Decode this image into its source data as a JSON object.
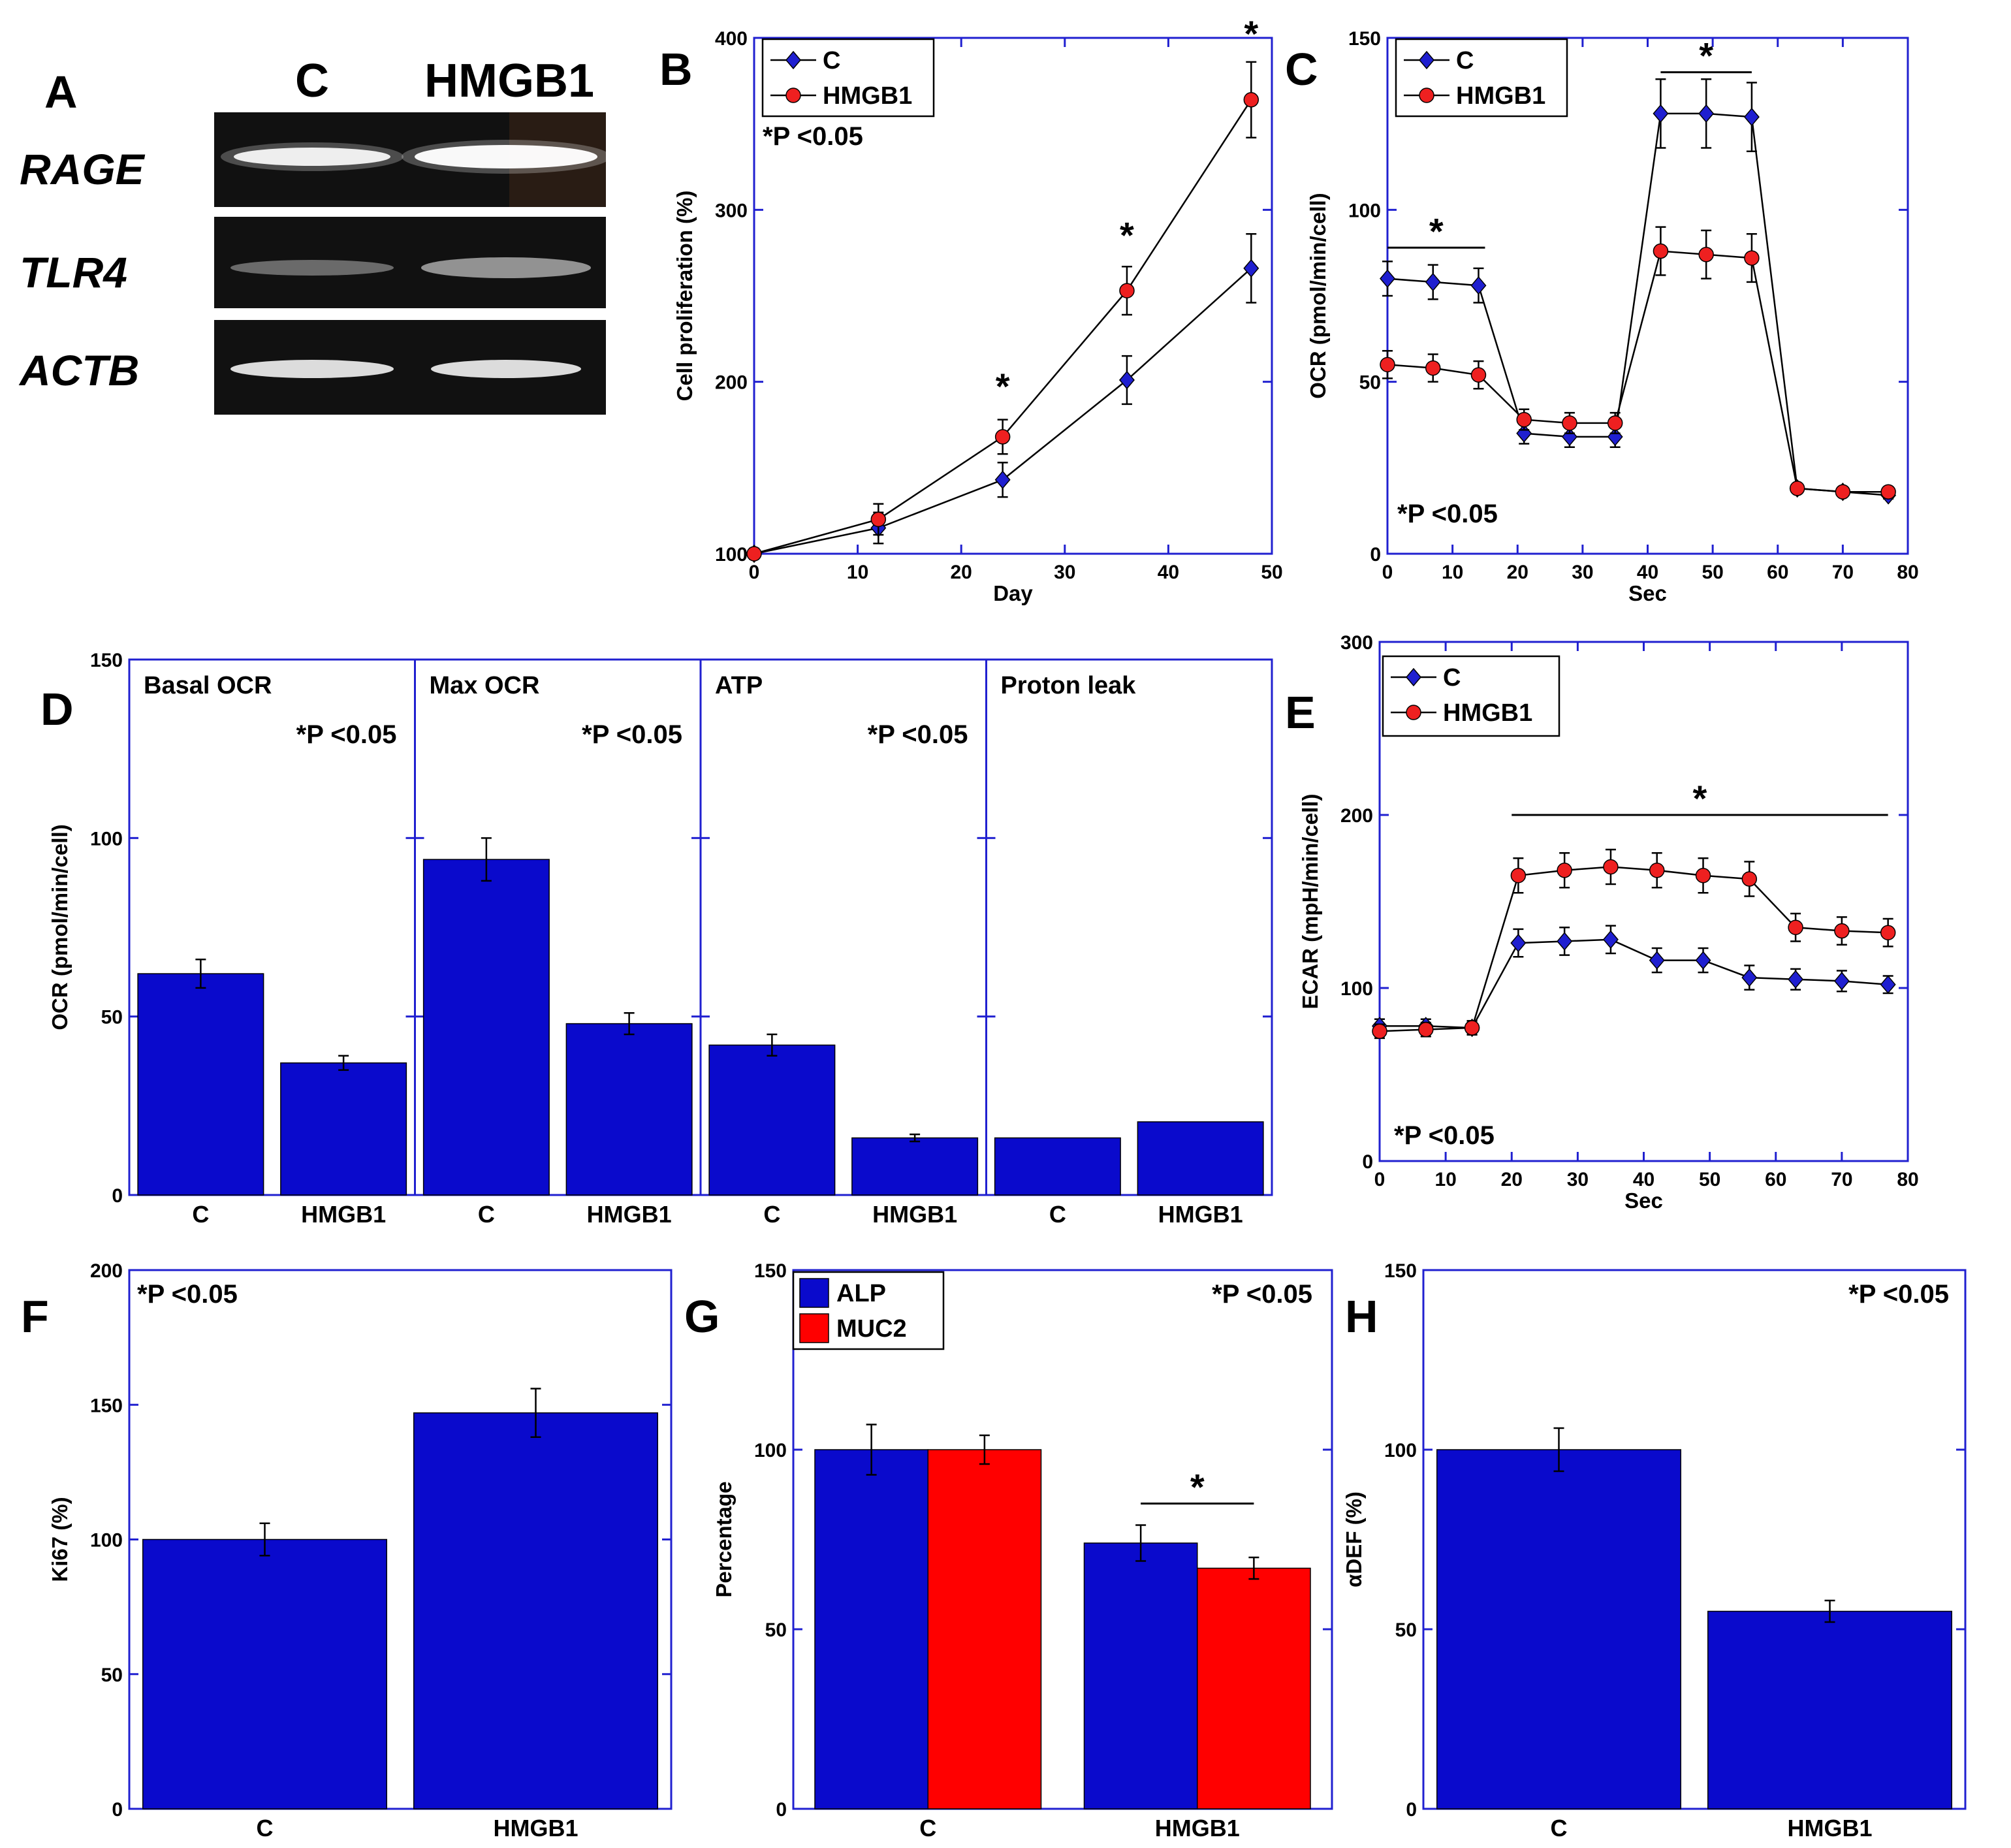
{
  "colors": {
    "c_series": "#1f1fd0",
    "hmgb1_series": "#ee2020",
    "bar_blue": "#0a0acc",
    "bar_red": "#ff0000",
    "axis": "#2020d0"
  },
  "panel_a": {
    "label": "A",
    "lanes": [
      "C",
      "HMGB1"
    ],
    "genes": [
      "RAGE",
      "TLR4",
      "ACTB"
    ]
  },
  "chart_data": [
    {
      "id": "B",
      "label": "B",
      "type": "line",
      "xlabel": "Day",
      "ylabel": "Cell proliferation (%)",
      "xlim": [
        0,
        50
      ],
      "ylim": [
        100,
        400
      ],
      "xticks": [
        0,
        10,
        20,
        30,
        40,
        50
      ],
      "yticks": [
        100,
        200,
        300,
        400
      ],
      "x": [
        0,
        12,
        24,
        36,
        48
      ],
      "series": [
        {
          "name": "C",
          "values": [
            100,
            115,
            143,
            201,
            266
          ],
          "errors": [
            3,
            9,
            10,
            14,
            20
          ]
        },
        {
          "name": "HMGB1",
          "values": [
            100,
            120,
            168,
            253,
            364
          ],
          "errors": [
            3,
            9,
            10,
            14,
            22
          ]
        }
      ],
      "legend": "top-left",
      "note": "*P <0.05",
      "stars": [
        {
          "x": 24,
          "y": 190
        },
        {
          "x": 36,
          "y": 278
        },
        {
          "x": 48,
          "y": 395
        }
      ]
    },
    {
      "id": "C",
      "label": "C",
      "type": "line",
      "xlabel": "Sec",
      "ylabel": "OCR (pmol/min/cell)",
      "xlim": [
        0,
        80
      ],
      "ylim": [
        0,
        150
      ],
      "xticks": [
        0,
        10,
        20,
        30,
        40,
        50,
        60,
        70,
        80
      ],
      "yticks": [
        0,
        50,
        100,
        150
      ],
      "x": [
        0,
        7,
        14,
        21,
        28,
        35,
        42,
        49,
        56,
        63,
        70,
        77
      ],
      "series": [
        {
          "name": "C",
          "values": [
            80,
            79,
            78,
            35,
            34,
            34,
            128,
            128,
            127,
            19,
            18,
            17
          ],
          "errors": [
            5,
            5,
            5,
            3,
            3,
            3,
            10,
            10,
            10,
            1,
            1,
            1
          ]
        },
        {
          "name": "HMGB1",
          "values": [
            55,
            54,
            52,
            39,
            38,
            38,
            88,
            87,
            86,
            19,
            18,
            18
          ],
          "errors": [
            4,
            4,
            4,
            3,
            3,
            3,
            7,
            7,
            7,
            1,
            1,
            1
          ]
        }
      ],
      "legend": "top-left",
      "note": "*P <0.05",
      "sig_bars": [
        {
          "x1": 0,
          "x2": 15,
          "y": 89
        },
        {
          "x1": 42,
          "x2": 56,
          "y": 140
        }
      ]
    },
    {
      "id": "D",
      "label": "D",
      "type": "bar",
      "ylabel": "OCR (pmol/min/cell)",
      "ylim": [
        0,
        150
      ],
      "yticks": [
        0,
        50,
        100,
        150
      ],
      "groups": [
        {
          "title": "Basal OCR",
          "note": "*P <0.05",
          "categories": [
            "C",
            "HMGB1"
          ],
          "values": [
            62,
            37
          ],
          "errors": [
            4,
            2
          ]
        },
        {
          "title": "Max OCR",
          "note": "*P <0.05",
          "categories": [
            "C",
            "HMGB1"
          ],
          "values": [
            94,
            48
          ],
          "errors": [
            6,
            3
          ]
        },
        {
          "title": "ATP",
          "note": "*P <0.05",
          "categories": [
            "C",
            "HMGB1"
          ],
          "values": [
            42,
            16
          ],
          "errors": [
            3,
            1
          ]
        },
        {
          "title": "Proton leak",
          "note": "",
          "categories": [
            "C",
            "HMGB1"
          ],
          "values": [
            16,
            20.5
          ],
          "errors": [
            0,
            0
          ]
        }
      ]
    },
    {
      "id": "E",
      "label": "E",
      "type": "line",
      "xlabel": "Sec",
      "ylabel": "ECAR (mpH/min/cell)",
      "xlim": [
        0,
        80
      ],
      "ylim": [
        0,
        300
      ],
      "xticks": [
        0,
        10,
        20,
        30,
        40,
        50,
        60,
        70,
        80
      ],
      "yticks": [
        0,
        100,
        200,
        300
      ],
      "x": [
        0,
        7,
        14,
        21,
        28,
        35,
        42,
        49,
        56,
        63,
        70,
        77
      ],
      "series": [
        {
          "name": "C",
          "values": [
            78,
            78,
            77,
            126,
            127,
            128,
            116,
            116,
            106,
            105,
            104,
            102
          ],
          "errors": [
            4,
            4,
            4,
            8,
            8,
            8,
            7,
            7,
            7,
            6,
            6,
            5
          ]
        },
        {
          "name": "HMGB1",
          "values": [
            75,
            76,
            77,
            165,
            168,
            170,
            168,
            165,
            163,
            135,
            133,
            132
          ],
          "errors": [
            4,
            4,
            4,
            10,
            10,
            10,
            10,
            10,
            10,
            8,
            8,
            8
          ]
        }
      ],
      "legend": "top-left",
      "note": "*P <0.05",
      "sig_bars": [
        {
          "x1": 20,
          "x2": 77,
          "y": 200
        }
      ]
    },
    {
      "id": "F",
      "label": "F",
      "type": "bar",
      "ylabel": "Ki67 (%)",
      "ylim": [
        0,
        200
      ],
      "yticks": [
        0,
        50,
        100,
        150,
        200
      ],
      "categories": [
        "C",
        "HMGB1"
      ],
      "values": [
        100,
        147
      ],
      "errors": [
        6,
        9
      ],
      "note": "*P <0.05"
    },
    {
      "id": "G",
      "label": "G",
      "type": "bar",
      "ylabel": "Percentage",
      "ylim": [
        0,
        150
      ],
      "yticks": [
        0,
        50,
        100,
        150
      ],
      "categories": [
        "C",
        "HMGB1"
      ],
      "series": [
        {
          "name": "ALP",
          "values": [
            100,
            74
          ],
          "errors": [
            7,
            5
          ]
        },
        {
          "name": "MUC2",
          "values": [
            100,
            67
          ],
          "errors": [
            4,
            3
          ]
        }
      ],
      "legend": "top-left",
      "note": "*P <0.05"
    },
    {
      "id": "H",
      "label": "H",
      "type": "bar",
      "ylabel": "αDEF (%)",
      "ylim": [
        0,
        150
      ],
      "yticks": [
        0,
        50,
        100,
        150
      ],
      "categories": [
        "C",
        "HMGB1"
      ],
      "values": [
        100,
        55
      ],
      "errors": [
        6,
        3
      ],
      "note": "*P <0.05"
    }
  ]
}
